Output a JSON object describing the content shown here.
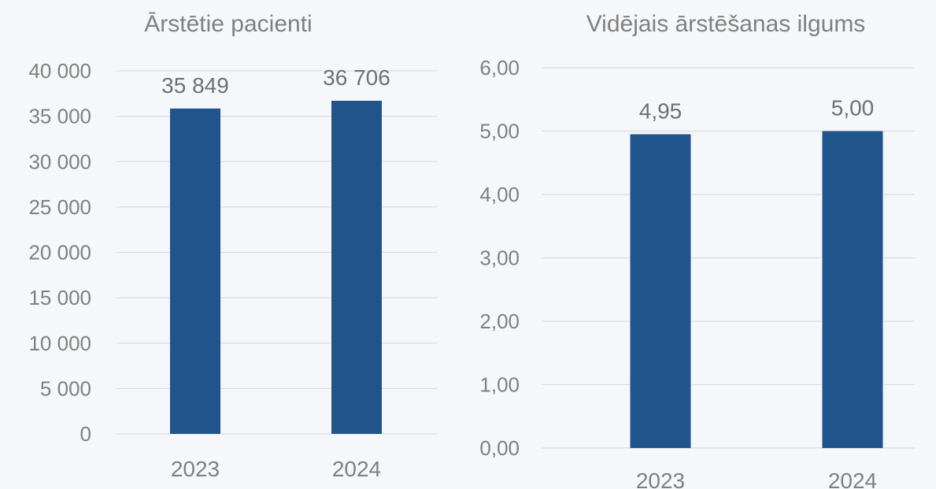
{
  "chart_data": [
    {
      "type": "bar",
      "title": "Ārstētie pacienti",
      "categories": [
        "2023",
        "2024"
      ],
      "values": [
        35849,
        36706
      ],
      "value_labels": [
        "35 849",
        "36 706"
      ],
      "ylim": [
        0,
        40000
      ],
      "y_ticks": [
        0,
        5000,
        10000,
        15000,
        20000,
        25000,
        30000,
        35000,
        40000
      ],
      "y_tick_labels": [
        "0",
        "5 000",
        "10 000",
        "15 000",
        "20 000",
        "25 000",
        "30 000",
        "35 000",
        "40 000"
      ],
      "xlabel": "",
      "ylabel": "",
      "grid": true,
      "bar_color": "#22548c"
    },
    {
      "type": "bar",
      "title": "Vidējais ārstēšanas ilgums",
      "categories": [
        "2023",
        "2024"
      ],
      "values": [
        4.95,
        5.0
      ],
      "value_labels": [
        "4,95",
        "5,00"
      ],
      "ylim": [
        0,
        6
      ],
      "y_ticks": [
        0,
        1,
        2,
        3,
        4,
        5,
        6
      ],
      "y_tick_labels": [
        "0,00",
        "1,00",
        "2,00",
        "3,00",
        "4,00",
        "5,00",
        "6,00"
      ],
      "xlabel": "",
      "ylabel": "",
      "grid": true,
      "bar_color": "#22548c"
    }
  ]
}
